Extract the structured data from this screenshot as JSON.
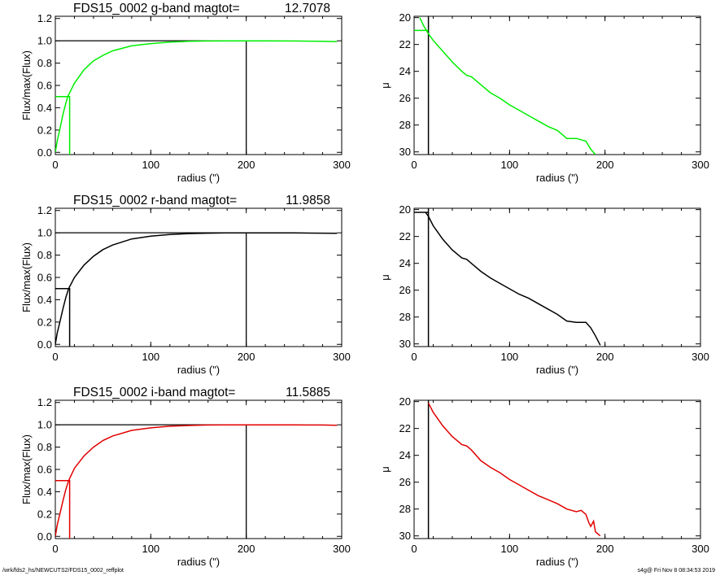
{
  "colors": {
    "g": "#00ee00",
    "r": "#000000",
    "i": "#e00000",
    "ref": "#000000"
  },
  "chart_data": [
    {
      "type": "line",
      "panel": "g-growth",
      "title_name": "FDS15_0002 g-band  magtot=",
      "title_value": "12.7078",
      "xlabel": "radius (\")",
      "ylabel": "Flux/max(Flux)",
      "xlim": [
        0,
        300
      ],
      "ylim": [
        -0.02,
        1.22
      ],
      "xticks": [
        "0",
        "100",
        "200",
        "300"
      ],
      "yticks": [
        "0.0",
        "0.2",
        "0.4",
        "0.6",
        "0.8",
        "1.0",
        "1.2"
      ],
      "color": "g",
      "x": [
        0,
        2,
        5,
        8,
        11,
        13,
        20,
        30,
        40,
        50,
        60,
        80,
        100,
        120,
        140,
        160,
        180,
        200,
        220,
        250,
        280,
        295
      ],
      "y": [
        0,
        0.1,
        0.22,
        0.34,
        0.44,
        0.5,
        0.62,
        0.74,
        0.82,
        0.87,
        0.91,
        0.955,
        0.975,
        0.988,
        0.995,
        0.998,
        1.0,
        1.0,
        1.0,
        0.998,
        0.996,
        0.993
      ],
      "reff": 15,
      "half": 0.5,
      "rmax": 200,
      "top": 1.0
    },
    {
      "type": "line",
      "panel": "g-profile",
      "xlabel": "radius (\")",
      "ylabel": "μ",
      "xlim": [
        0,
        300
      ],
      "ylim": [
        30.2,
        19.9
      ],
      "xticks": [
        "0",
        "100",
        "200",
        "300"
      ],
      "yticks": [
        "20",
        "22",
        "24",
        "26",
        "28",
        "30"
      ],
      "color": "g",
      "x": [
        6,
        10,
        15,
        20,
        25,
        30,
        40,
        50,
        55,
        60,
        70,
        80,
        90,
        100,
        110,
        120,
        130,
        140,
        150,
        155,
        160,
        170,
        175,
        180,
        185,
        190
      ],
      "y": [
        20.0,
        20.6,
        21.2,
        21.7,
        22.1,
        22.5,
        23.3,
        24.0,
        24.3,
        24.4,
        25.0,
        25.6,
        26.0,
        26.5,
        26.9,
        27.3,
        27.7,
        28.1,
        28.4,
        28.7,
        29.0,
        29.0,
        29.1,
        29.2,
        29.8,
        30.2
      ],
      "step_y": 20.95,
      "reff": 15
    },
    {
      "type": "line",
      "panel": "r-growth",
      "title_name": "FDS15_0002 r-band  magtot=",
      "title_value": "11.9858",
      "xlabel": "radius (\")",
      "ylabel": "Flux/max(Flux)",
      "xlim": [
        0,
        300
      ],
      "ylim": [
        -0.02,
        1.22
      ],
      "xticks": [
        "0",
        "100",
        "200",
        "300"
      ],
      "yticks": [
        "0.0",
        "0.2",
        "0.4",
        "0.6",
        "0.8",
        "1.0",
        "1.2"
      ],
      "color": "r",
      "x": [
        0,
        2,
        5,
        8,
        11,
        14,
        20,
        30,
        40,
        50,
        60,
        80,
        100,
        120,
        140,
        160,
        180,
        200,
        220,
        250,
        280,
        295
      ],
      "y": [
        0,
        0.1,
        0.21,
        0.32,
        0.42,
        0.5,
        0.6,
        0.71,
        0.79,
        0.85,
        0.89,
        0.945,
        0.97,
        0.985,
        0.993,
        0.997,
        0.999,
        1.0,
        1.0,
        0.999,
        0.997,
        0.995
      ],
      "reff": 15,
      "half": 0.5,
      "rmax": 200,
      "top": 1.0
    },
    {
      "type": "line",
      "panel": "r-profile",
      "xlabel": "radius (\")",
      "ylabel": "μ",
      "xlim": [
        0,
        300
      ],
      "ylim": [
        30.2,
        19.9
      ],
      "xticks": [
        "0",
        "100",
        "200",
        "300"
      ],
      "yticks": [
        "20",
        "22",
        "24",
        "26",
        "28",
        "30"
      ],
      "color": "r",
      "x": [
        12,
        15,
        20,
        25,
        30,
        40,
        50,
        55,
        60,
        70,
        80,
        90,
        100,
        110,
        120,
        130,
        140,
        150,
        160,
        170,
        180,
        185,
        190,
        195
      ],
      "y": [
        20.2,
        20.5,
        21.2,
        21.7,
        22.2,
        23.0,
        23.6,
        23.7,
        24.0,
        24.6,
        25.1,
        25.5,
        25.9,
        26.3,
        26.6,
        27.0,
        27.4,
        27.8,
        28.3,
        28.4,
        28.4,
        28.8,
        29.4,
        30.1
      ],
      "step_y": 20.2,
      "reff": 15
    },
    {
      "type": "line",
      "panel": "i-growth",
      "title_name": "FDS15_0002 i-band  magtot=",
      "title_value": "11.5885",
      "xlabel": "radius (\")",
      "ylabel": "Flux/max(Flux)",
      "xlim": [
        0,
        300
      ],
      "ylim": [
        -0.02,
        1.22
      ],
      "xticks": [
        "0",
        "100",
        "200",
        "300"
      ],
      "yticks": [
        "0.0",
        "0.2",
        "0.4",
        "0.6",
        "0.8",
        "1.0",
        "1.2"
      ],
      "color": "i",
      "x": [
        0,
        2,
        5,
        8,
        11,
        14,
        20,
        30,
        40,
        50,
        60,
        80,
        100,
        120,
        140,
        160,
        180,
        200,
        220,
        250,
        280,
        295
      ],
      "y": [
        0,
        0.1,
        0.21,
        0.32,
        0.42,
        0.5,
        0.61,
        0.72,
        0.8,
        0.86,
        0.9,
        0.95,
        0.973,
        0.987,
        0.994,
        0.998,
        1.0,
        1.0,
        1.0,
        0.999,
        0.998,
        0.996
      ],
      "reff": 15,
      "half": 0.5,
      "rmax": 200,
      "top": 1.0
    },
    {
      "type": "line",
      "panel": "i-profile",
      "xlabel": "radius (\")",
      "ylabel": "μ",
      "xlim": [
        0,
        300
      ],
      "ylim": [
        30.2,
        19.9
      ],
      "xticks": [
        "0",
        "100",
        "200",
        "300"
      ],
      "yticks": [
        "20",
        "22",
        "24",
        "26",
        "28",
        "30"
      ],
      "color": "i",
      "x": [
        15,
        20,
        25,
        30,
        40,
        50,
        55,
        60,
        70,
        80,
        90,
        100,
        110,
        120,
        130,
        140,
        150,
        160,
        170,
        175,
        180,
        183,
        185,
        188,
        190,
        195
      ],
      "y": [
        20.1,
        20.8,
        21.3,
        21.8,
        22.6,
        23.2,
        23.3,
        23.6,
        24.4,
        24.9,
        25.3,
        25.8,
        26.2,
        26.6,
        27.0,
        27.3,
        27.6,
        28.0,
        28.2,
        28.1,
        28.4,
        29.0,
        29.3,
        28.9,
        29.7,
        30.0
      ],
      "step_y": null,
      "reff": 15
    }
  ],
  "footer": {
    "left": "/wrk/fds2_hs/NEWCUTS2/FDS15_0002_reffplot",
    "right": "s4g@  Fri Nov  8 08:34:53 2019"
  }
}
